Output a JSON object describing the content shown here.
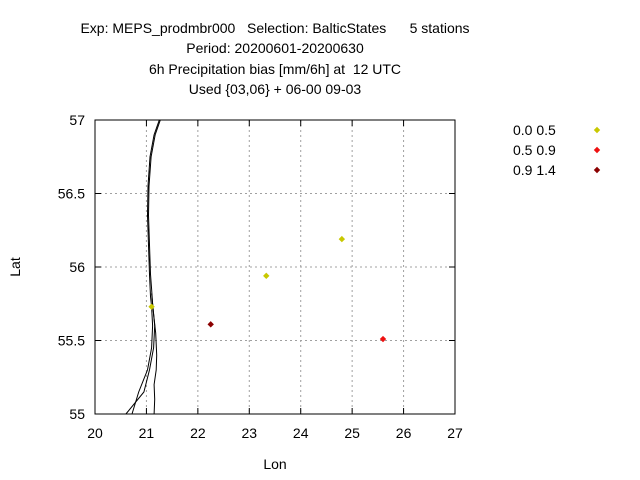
{
  "chart_data": {
    "type": "scatter",
    "title_lines": [
      "Exp: MEPS_prodmbr000   Selection: BalticStates      5 stations",
      "Period: 20200601-20200630",
      "6h Precipitation bias [mm/6h] at  12 UTC",
      "Used {03,06} + 06-00 09-03"
    ],
    "xlabel": "Lon",
    "ylabel": "Lat",
    "xlim": [
      20,
      27
    ],
    "ylim": [
      55,
      57
    ],
    "x_ticks": [
      "20",
      "21",
      "22",
      "23",
      "24",
      "25",
      "26",
      "27"
    ],
    "y_ticks": [
      "55",
      "55.5",
      "56",
      "56.5",
      "57"
    ],
    "grid": true,
    "legend_position": "right",
    "series": [
      {
        "name": "0.0 0.5",
        "color": "#c8c800",
        "points": [
          [
            23.33,
            55.94
          ],
          [
            24.8,
            56.19
          ],
          [
            21.1,
            55.73
          ]
        ]
      },
      {
        "name": "0.5 0.9",
        "color": "#ee1111",
        "points": [
          [
            25.6,
            55.51
          ]
        ]
      },
      {
        "name": "0.9 1.4",
        "color": "#8b0000",
        "points": [
          [
            22.25,
            55.61
          ]
        ]
      }
    ],
    "coastline": [
      [
        [
          21.25,
          57.0
        ],
        [
          21.15,
          56.9
        ],
        [
          21.07,
          56.75
        ],
        [
          21.03,
          56.55
        ],
        [
          21.02,
          56.35
        ],
        [
          21.04,
          56.15
        ],
        [
          21.06,
          55.95
        ],
        [
          21.08,
          55.8
        ],
        [
          21.1,
          55.73
        ],
        [
          21.12,
          55.6
        ],
        [
          21.1,
          55.45
        ],
        [
          21.02,
          55.3
        ],
        [
          20.85,
          55.15
        ],
        [
          20.72,
          55.0
        ]
      ],
      [
        [
          21.27,
          57.0
        ],
        [
          21.17,
          56.9
        ],
        [
          21.09,
          56.75
        ],
        [
          21.05,
          56.55
        ],
        [
          21.04,
          56.35
        ],
        [
          21.06,
          56.15
        ],
        [
          21.08,
          55.95
        ],
        [
          21.1,
          55.85
        ],
        [
          21.12,
          55.75
        ],
        [
          21.16,
          55.6
        ],
        [
          21.14,
          55.45
        ],
        [
          21.06,
          55.3
        ],
        [
          20.95,
          55.15
        ],
        [
          20.6,
          55.0
        ]
      ],
      [
        [
          21.1,
          55.82
        ],
        [
          21.14,
          55.68
        ],
        [
          21.18,
          55.55
        ],
        [
          21.2,
          55.4
        ],
        [
          21.19,
          55.3
        ],
        [
          21.15,
          55.2
        ],
        [
          21.16,
          55.1
        ],
        [
          21.15,
          55.0
        ]
      ]
    ]
  }
}
